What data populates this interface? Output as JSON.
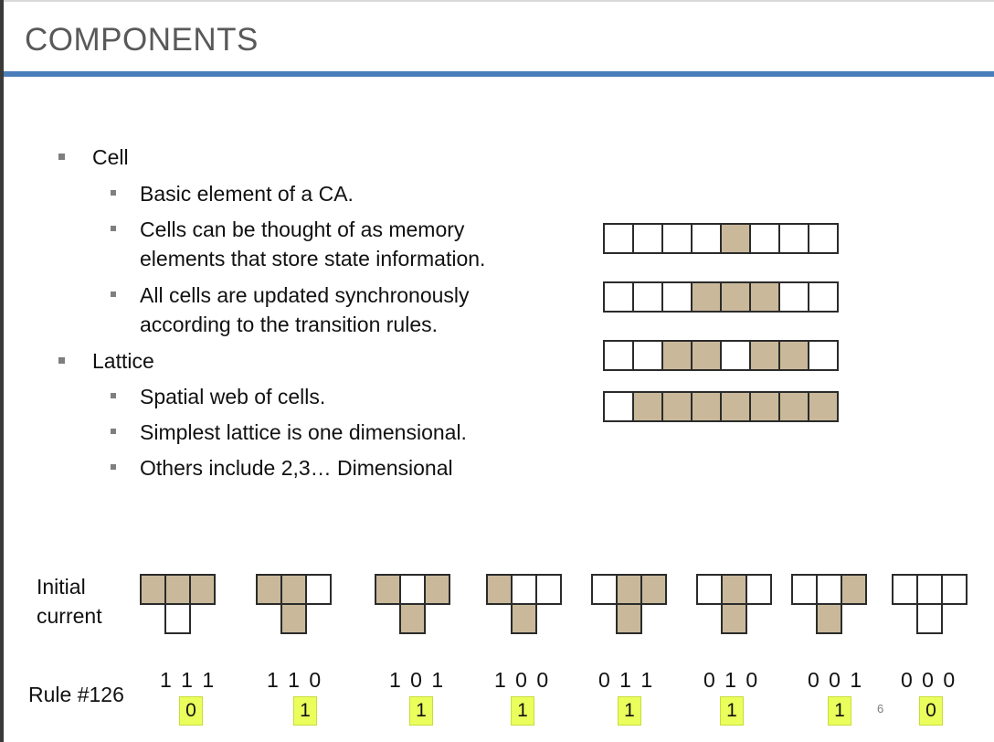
{
  "slide": {
    "title": "COMPONENTS",
    "page_number": "6"
  },
  "bullets": {
    "cell": {
      "label": "Cell",
      "subs": [
        [
          "Basic element of a CA."
        ],
        [
          "Cells can be thought of as memory",
          "elements that store state information."
        ],
        [
          "All cells are updated synchronously",
          "according to the transition rules."
        ]
      ]
    },
    "lattice": {
      "label": "Lattice",
      "subs": [
        [
          "Spatial web of cells."
        ],
        [
          "Simplest lattice is one dimensional."
        ],
        [
          "Others include 2,3… Dimensional"
        ]
      ]
    }
  },
  "lattice_rows": [
    [
      0,
      0,
      0,
      0,
      1,
      0,
      0,
      0
    ],
    [
      0,
      0,
      0,
      1,
      1,
      1,
      0,
      0
    ],
    [
      0,
      0,
      1,
      1,
      0,
      1,
      1,
      0
    ],
    [
      0,
      1,
      1,
      1,
      1,
      1,
      1,
      1
    ]
  ],
  "rule": {
    "initial_label_1": "Initial",
    "initial_label_2": "current",
    "label": "Rule #126",
    "neighborhoods": [
      {
        "pattern": "1 1 1",
        "cells": [
          1,
          1,
          1
        ],
        "output": "0"
      },
      {
        "pattern": "1 1 0",
        "cells": [
          1,
          1,
          0
        ],
        "output": "1"
      },
      {
        "pattern": "1 0 1",
        "cells": [
          1,
          0,
          1
        ],
        "output": "1"
      },
      {
        "pattern": "1 0 0",
        "cells": [
          1,
          0,
          0
        ],
        "output": "1"
      },
      {
        "pattern": "0 1 1",
        "cells": [
          0,
          1,
          1
        ],
        "output": "1"
      },
      {
        "pattern": "0 1 0",
        "cells": [
          0,
          1,
          0
        ],
        "output": "1"
      },
      {
        "pattern": "0 0 1",
        "cells": [
          0,
          0,
          1
        ],
        "output": "1"
      },
      {
        "pattern": "0 0 0",
        "cells": [
          0,
          0,
          0
        ],
        "output": "0"
      }
    ]
  },
  "colors": {
    "accent_bar": "#4a7ebb",
    "cell_on": "#c9b99a",
    "highlight": "#eaff5c"
  }
}
